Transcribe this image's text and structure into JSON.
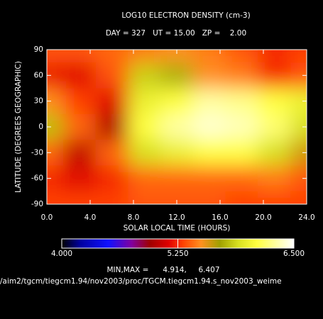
{
  "chart_data": {
    "type": "heatmap",
    "title": "LOG10 ELECTRON DENSITY (cm-3)",
    "subtitle": "DAY = 327   UT = 15.00   ZP =    2.00",
    "x_label": "SOLAR LOCAL TIME (HOURS)",
    "y_label": "LATITUDE (DEGREES GEOGRAPHIC)",
    "x": [
      0,
      3,
      6,
      9,
      12,
      15,
      18,
      21,
      24
    ],
    "y": [
      90,
      60,
      30,
      0,
      -30,
      -60,
      -90
    ],
    "z": [
      [
        5.35,
        5.35,
        5.4,
        5.45,
        5.5,
        5.45,
        5.35,
        5.25,
        5.3
      ],
      [
        5.2,
        5.15,
        5.35,
        5.85,
        5.75,
        5.5,
        5.45,
        5.25,
        5.35
      ],
      [
        5.5,
        5.3,
        5.15,
        6.0,
        6.1,
        6.3,
        6.25,
        6.1,
        6.0
      ],
      [
        5.8,
        5.4,
        5.0,
        6.1,
        6.3,
        6.4,
        6.35,
        6.2,
        5.9
      ],
      [
        5.4,
        5.05,
        5.4,
        5.9,
        6.0,
        6.1,
        6.1,
        5.9,
        5.6
      ],
      [
        5.25,
        5.15,
        5.25,
        5.4,
        5.4,
        5.4,
        5.4,
        5.45,
        5.35
      ],
      [
        5.3,
        5.3,
        5.3,
        5.35,
        5.35,
        5.35,
        5.3,
        5.3,
        5.3
      ]
    ],
    "xlim": [
      0,
      24
    ],
    "xticks": [
      {
        "value": 0,
        "label": "0.0"
      },
      {
        "value": 4,
        "label": "4.0"
      },
      {
        "value": 8,
        "label": "8.0"
      },
      {
        "value": 12,
        "label": "12.0"
      },
      {
        "value": 16,
        "label": "16.0"
      },
      {
        "value": 20,
        "label": "20.0"
      },
      {
        "value": 24,
        "label": "24.0"
      }
    ],
    "ylim": [
      -90,
      90
    ],
    "yticks": [
      90,
      60,
      30,
      0,
      -30,
      -60,
      -90
    ],
    "colorbar": {
      "lim": [
        4.0,
        6.5
      ],
      "ticks": [
        {
          "value": 4.0,
          "label": "4.000"
        },
        {
          "value": 5.25,
          "label": "5.250"
        },
        {
          "value": 6.5,
          "label": "6.500"
        }
      ],
      "colorscale": [
        [
          4.0,
          "#000000"
        ],
        [
          4.2,
          "#0000a0"
        ],
        [
          4.5,
          "#1010ff"
        ],
        [
          4.75,
          "#8000a0"
        ],
        [
          4.95,
          "#a00000"
        ],
        [
          5.15,
          "#e00000"
        ],
        [
          5.3,
          "#ff4000"
        ],
        [
          5.5,
          "#ff9020"
        ],
        [
          5.7,
          "#a0a000"
        ],
        [
          5.9,
          "#d8e020"
        ],
        [
          6.1,
          "#ffff40"
        ],
        [
          6.5,
          "#ffffff"
        ]
      ]
    },
    "minmax_label": "MIN,MAX =      4.914,     6.407",
    "file_path": "/aim2/tgcm/tiegcm1.94/nov2003/proc/TGCM.tiegcm1.94.s_nov2003_weime"
  }
}
